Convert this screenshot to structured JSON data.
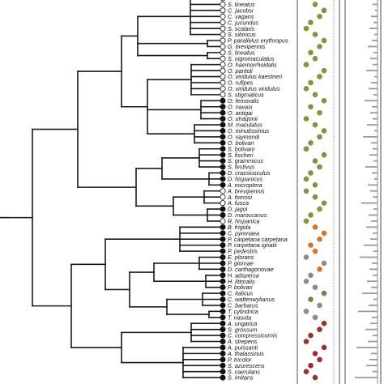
{
  "tree": {
    "line_color": "#1a1a1a",
    "node_fill_open": "#ffffff",
    "node_fill_filled": "#111111",
    "dot_colors": {
      "green": "#7a9a3a",
      "orange": "#d9742a",
      "grey": "#8c8c8c",
      "mixed": "#8a7a4a",
      "red": "#9b2f2f"
    },
    "taxa": [
      {
        "name": "",
        "node": "open",
        "dot": null,
        "bar": 0
      },
      {
        "name": "S. lineatus",
        "node": "open",
        "dot": "green",
        "bar": 0
      },
      {
        "name": "C. jacobsi",
        "node": "open",
        "dot": "green",
        "bar": 0
      },
      {
        "name": "C. vagans",
        "node": "open",
        "dot": "green",
        "bar": 0
      },
      {
        "name": "C. jucundus",
        "node": "open",
        "dot": "green",
        "bar": 0
      },
      {
        "name": "S. scalaris",
        "node": "open",
        "dot": "green",
        "bar": 0
      },
      {
        "name": "S. sibiricus",
        "node": "open",
        "dot": "green",
        "bar": 0
      },
      {
        "name": "P. parallelus erythropus",
        "node": "open",
        "dot": "green",
        "bar": 0
      },
      {
        "name": "G. brevipennis",
        "node": "open",
        "dot": "green",
        "bar": 0
      },
      {
        "name": "S. lineatus",
        "node": "open",
        "dot": "green",
        "bar": 0
      },
      {
        "name": "S. nigromaculatus",
        "node": "open",
        "dot": "green",
        "bar": 0
      },
      {
        "name": "O. haemorrhoidalis",
        "node": "open",
        "dot": "green",
        "bar": 0
      },
      {
        "name": "O. pantoli",
        "node": "open",
        "dot": "green",
        "bar": 0
      },
      {
        "name": "O. viridulus kaestneri",
        "node": "open",
        "dot": "green",
        "bar": 0
      },
      {
        "name": "O. rufipes",
        "node": "open",
        "dot": "green",
        "bar": 0
      },
      {
        "name": "O. viridulus viridulus",
        "node": "open",
        "dot": "green",
        "bar": 0
      },
      {
        "name": "S. stigmaticus",
        "node": "open",
        "dot": "green",
        "bar": 0
      },
      {
        "name": "O. femoralis",
        "node": "filled",
        "dot": "green",
        "bar": 0
      },
      {
        "name": "O. navasi",
        "node": "filled",
        "dot": "green",
        "bar": 0
      },
      {
        "name": "O. antigai",
        "node": "filled",
        "dot": "green",
        "bar": 0
      },
      {
        "name": "O. uhagonii",
        "node": "filled",
        "dot": "green",
        "bar": 0
      },
      {
        "name": "M. maculatus",
        "node": "filled",
        "dot": "green",
        "bar": 0
      },
      {
        "name": "O. minutissimus",
        "node": "filled",
        "dot": "green",
        "bar": 0
      },
      {
        "name": "O. raymondi",
        "node": "filled",
        "dot": "green",
        "bar": 0
      },
      {
        "name": "O. bolivari",
        "node": "filled",
        "dot": "green",
        "bar": 0
      },
      {
        "name": "S. bolivani",
        "node": "filled",
        "dot": "green",
        "bar": 0
      },
      {
        "name": "S. fischeri",
        "node": "filled",
        "dot": "green",
        "bar": 0
      },
      {
        "name": "S. grammicus",
        "node": "filled",
        "dot": "green",
        "bar": 0
      },
      {
        "name": "S. festivus",
        "node": "filled",
        "dot": "green",
        "bar": 0
      },
      {
        "name": "D. crassiusculus",
        "node": "filled",
        "dot": "green",
        "bar": 0
      },
      {
        "name": "D. hispanicus",
        "node": "filled",
        "dot": "green",
        "bar": 0
      },
      {
        "name": "A. microptera",
        "node": "filled",
        "dot": "green",
        "bar": 0
      },
      {
        "name": "A. brevipennis",
        "node": "open",
        "dot": "green",
        "bar": 0
      },
      {
        "name": "A. fomosi",
        "node": "open",
        "dot": "green",
        "bar": 0
      },
      {
        "name": "A. fusca",
        "node": "open",
        "dot": "green",
        "bar": 0
      },
      {
        "name": "D. jagoi",
        "node": "filled",
        "dot": "green",
        "bar": 0
      },
      {
        "name": "D. maroccanus",
        "node": "filled",
        "dot": "green",
        "bar": 0
      },
      {
        "name": "R. hispanica",
        "node": "open",
        "dot": "green",
        "bar": 0
      },
      {
        "name": "B. frigida",
        "node": "filled",
        "dot": "orange",
        "bar": 0
      },
      {
        "name": "C. pyrenaea",
        "node": "filled",
        "dot": "orange",
        "bar": 0
      },
      {
        "name": "P. carpetana carpetana",
        "node": "filled",
        "dot": "orange",
        "bar": 0
      },
      {
        "name": "P. carpetana ignatii",
        "node": "filled",
        "dot": "orange",
        "bar": 0
      },
      {
        "name": "P. pedestris",
        "node": "filled",
        "dot": "orange",
        "bar": 0
      },
      {
        "name": "E. plorans",
        "node": "filled",
        "dot": "grey",
        "bar": 0
      },
      {
        "name": "P. giornae",
        "node": "filled",
        "dot": "grey",
        "bar": 0
      },
      {
        "name": "D. carthagonovae",
        "node": "filled",
        "dot": "orange",
        "bar": 0
      },
      {
        "name": "H. adspersa",
        "node": "filled",
        "dot": "grey",
        "bar": 0
      },
      {
        "name": "H. littoralis",
        "node": "filled",
        "dot": "grey",
        "bar": 0
      },
      {
        "name": "P. bolivari",
        "node": "filled",
        "dot": "grey",
        "bar": 0
      },
      {
        "name": "C. italicus",
        "node": "filled",
        "dot": "mixed",
        "bar": 0
      },
      {
        "name": "C. wattenwylianus",
        "node": "filled",
        "dot": "mixed",
        "bar": 0
      },
      {
        "name": "C. barbarus",
        "node": "filled",
        "dot": "grey",
        "bar": 0
      },
      {
        "name": "T. cylindrica",
        "node": "filled",
        "dot": "grey",
        "bar": 0
      },
      {
        "name": "T. nasuta",
        "node": "filled",
        "dot": "grey",
        "bar": 0
      },
      {
        "name": "A. ungarica",
        "node": "filled",
        "dot": "red",
        "bar": 0
      },
      {
        "name": "S. grossum",
        "node": "filled",
        "dot": "red",
        "bar": 0
      },
      {
        "name": "C. compressicornis",
        "node": "filled",
        "dot": "red",
        "bar": 0
      },
      {
        "name": "A. strepens",
        "node": "filled",
        "dot": "red",
        "bar": 0
      },
      {
        "name": "A. puissanti",
        "node": "filled",
        "dot": "red",
        "bar": 0
      },
      {
        "name": "A. thalassinus",
        "node": "filled",
        "dot": "red",
        "bar": 0
      },
      {
        "name": "P. tricolor",
        "node": "filled",
        "dot": "red",
        "bar": 0
      },
      {
        "name": "S. azurescens",
        "node": "filled",
        "dot": "red",
        "bar": 0
      },
      {
        "name": "S. caerulans",
        "node": "filled",
        "dot": "red",
        "bar": 0
      },
      {
        "name": "S. imitans",
        "node": "filled",
        "dot": "red",
        "bar": 0
      }
    ]
  }
}
